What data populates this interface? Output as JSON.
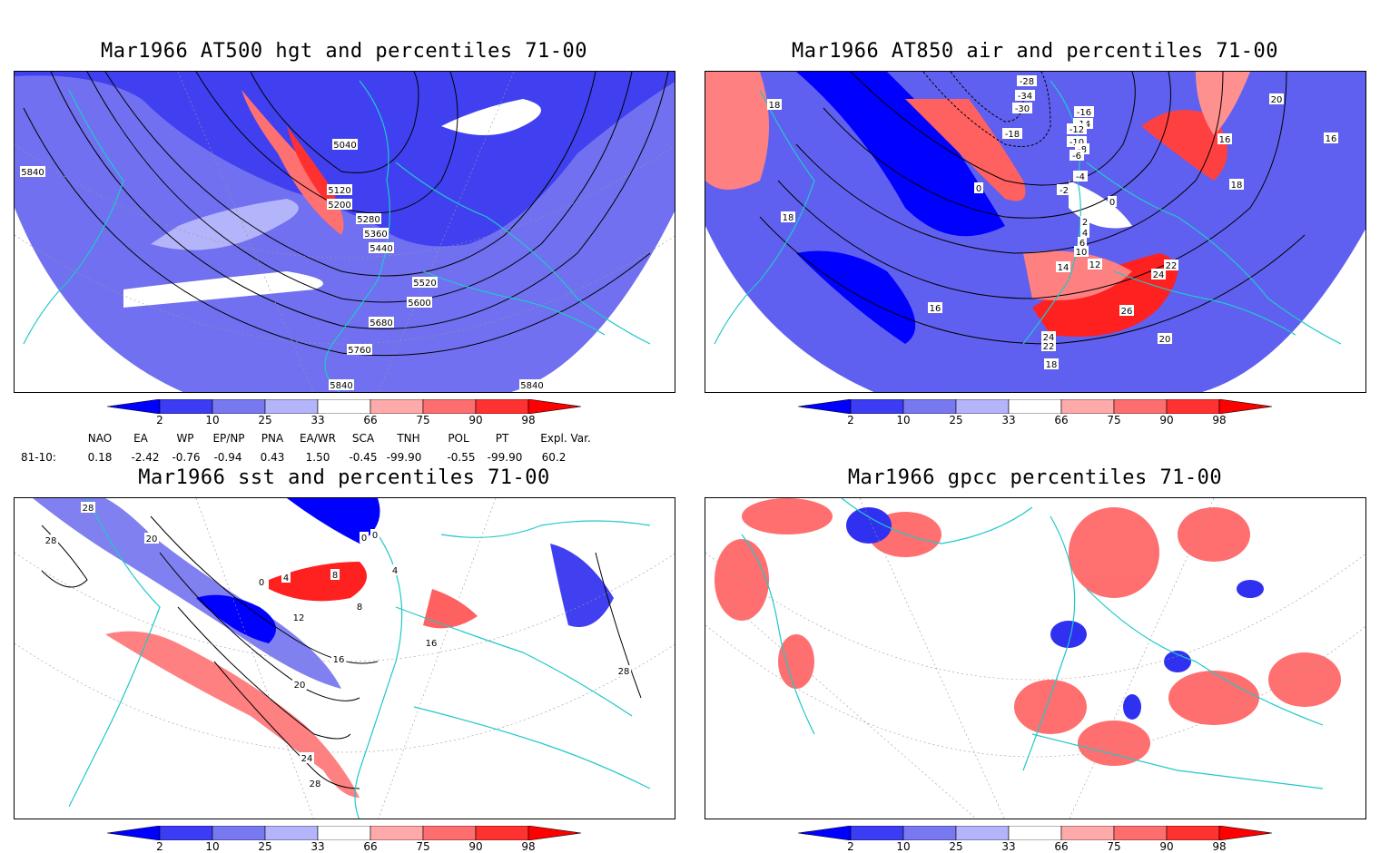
{
  "panels": {
    "hgt": {
      "title": "Mar1966 AT500 hgt and percentiles 71-00",
      "contour_labels": [
        "5040",
        "5120",
        "5200",
        "5280",
        "5360",
        "5440",
        "5520",
        "5600",
        "5680",
        "5760",
        "5840",
        "5840",
        "5840"
      ]
    },
    "air": {
      "title": "Mar1966 AT850 air and percentiles 71-00",
      "contour_labels": [
        "-28",
        "-34",
        "-30",
        "-18",
        "-16",
        "-14",
        "-12",
        "-10",
        "-8",
        "-6",
        "-4",
        "-2",
        "0",
        "0",
        "2",
        "4",
        "6",
        "8",
        "10",
        "12",
        "14",
        "16",
        "16",
        "16",
        "18",
        "18",
        "18",
        "18",
        "20",
        "20",
        "22",
        "22",
        "24",
        "24",
        "26"
      ]
    },
    "sst": {
      "title": "Mar1966 sst and percentiles 71-00",
      "contour_labels": [
        "28",
        "28",
        "20",
        "0",
        "0",
        "4",
        "4",
        "8",
        "8",
        "12",
        "16",
        "16",
        "20",
        "24",
        "28",
        "28",
        "0"
      ]
    },
    "gpcc": {
      "title": "Mar1966 gpcc percentiles 71-00"
    }
  },
  "colorbar": {
    "ticks": [
      "2",
      "10",
      "25",
      "33",
      "66",
      "75",
      "90",
      "98"
    ],
    "colors": [
      "#0000ff",
      "#3c3cf5",
      "#7878f0",
      "#b4b4fa",
      "#ffffff",
      "#ffaaaa",
      "#ff6e6e",
      "#ff3232",
      "#ff0000"
    ]
  },
  "indices": {
    "headers": [
      "NAO",
      "EA",
      "WP",
      "EP/NP",
      "PNA",
      "EA/WR",
      "SCA",
      "TNH",
      "POL",
      "PT",
      "Expl. Var."
    ],
    "row_label": "81-10:",
    "values": [
      "0.18",
      "-2.42",
      "-0.76",
      "-0.94",
      "0.43",
      "1.50",
      "-0.45",
      "-99.90",
      "-0.55",
      "-99.90",
      "60.2"
    ]
  },
  "map_colors": {
    "coast": "#20c8c8",
    "contour": "#000000",
    "grid": "#999999"
  }
}
